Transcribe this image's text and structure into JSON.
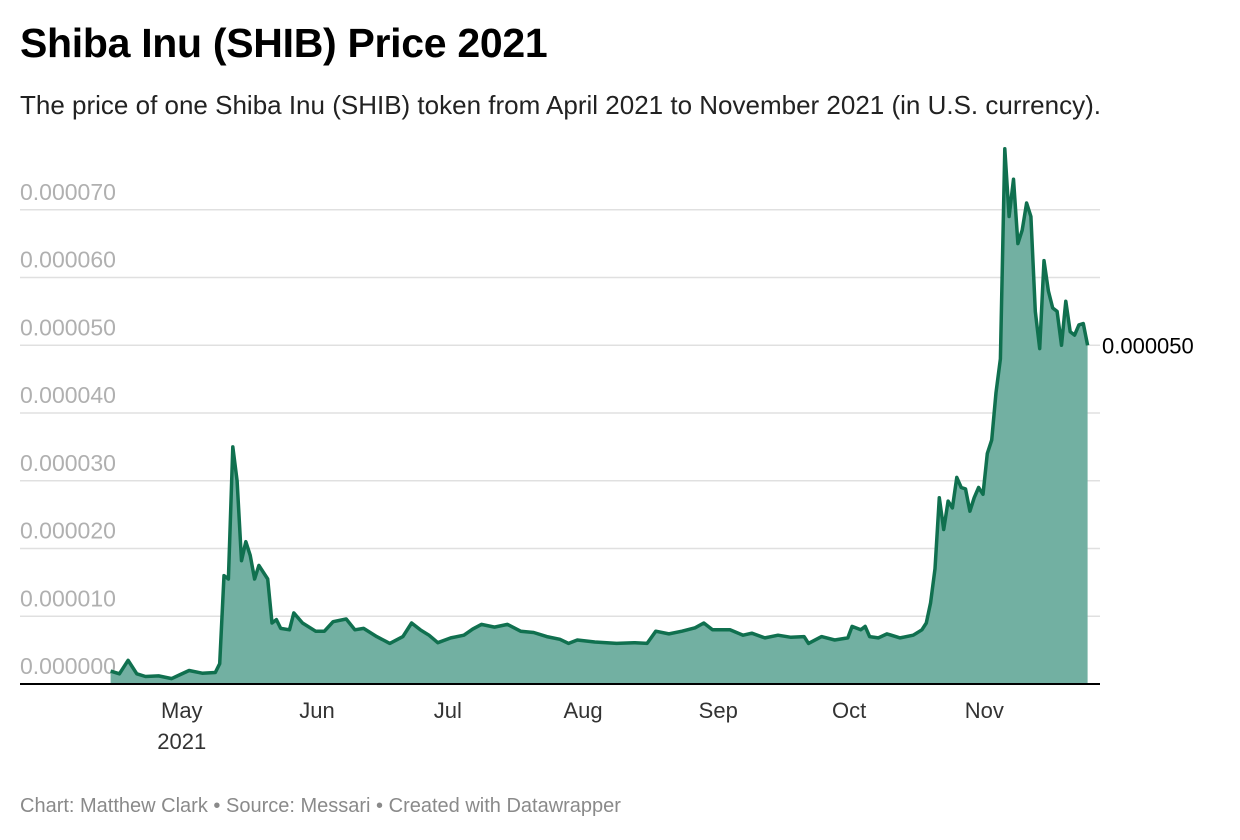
{
  "header": {
    "title": "Shiba Inu (SHIB) Price 2021",
    "subtitle": "The price of one Shiba Inu (SHIB) token from April 2021 to November 2021 (in U.S. currency)."
  },
  "footer": {
    "credit": "Chart: Matthew Clark",
    "separator": "•",
    "source": "Source: Messari",
    "created_with": "Created with Datawrapper"
  },
  "colors": {
    "line": "#10704f",
    "area": "#72b0a2",
    "grid": "#e0e0e0",
    "axis": "#000000"
  },
  "chart_data": {
    "type": "area",
    "title": "Shiba Inu (SHIB) Price 2021",
    "subtitle": "The price of one Shiba Inu (SHIB) token from April 2021 to November 2021 (in U.S. currency).",
    "xlabel": "",
    "ylabel": "",
    "xlim": [
      "2021-04-15",
      "2021-11-25"
    ],
    "ylim": [
      0,
      8e-05
    ],
    "grid": true,
    "y_ticks": [
      "0.000000",
      "0.000010",
      "0.000020",
      "0.000030",
      "0.000040",
      "0.000050",
      "0.000060",
      "0.000070"
    ],
    "x_ticks": [
      {
        "date": "2021-05-01",
        "label": "May",
        "sublabel": "2021"
      },
      {
        "date": "2021-06-01",
        "label": "Jun"
      },
      {
        "date": "2021-07-01",
        "label": "Jul"
      },
      {
        "date": "2021-08-01",
        "label": "Aug"
      },
      {
        "date": "2021-09-01",
        "label": "Sep"
      },
      {
        "date": "2021-10-01",
        "label": "Oct"
      },
      {
        "date": "2021-11-01",
        "label": "Nov"
      }
    ],
    "end_label": "0.000050",
    "series": [
      {
        "values": [
          [
            "2021-04-14",
            1.9e-06
          ],
          [
            "2021-04-16",
            1.5e-06
          ],
          [
            "2021-04-18",
            3.5e-06
          ],
          [
            "2021-04-20",
            1.5e-06
          ],
          [
            "2021-04-22",
            1.1e-06
          ],
          [
            "2021-04-25",
            1.2e-06
          ],
          [
            "2021-04-28",
            8e-07
          ],
          [
            "2021-04-30",
            1.4e-06
          ],
          [
            "2021-05-02",
            2e-06
          ],
          [
            "2021-05-05",
            1.6e-06
          ],
          [
            "2021-05-08",
            1.7e-06
          ],
          [
            "2021-05-09",
            3e-06
          ],
          [
            "2021-05-10",
            1.6e-05
          ],
          [
            "2021-05-11",
            1.55e-05
          ],
          [
            "2021-05-12",
            3.5e-05
          ],
          [
            "2021-05-13",
            3e-05
          ],
          [
            "2021-05-14",
            1.82e-05
          ],
          [
            "2021-05-15",
            2.1e-05
          ],
          [
            "2021-05-16",
            1.9e-05
          ],
          [
            "2021-05-17",
            1.55e-05
          ],
          [
            "2021-05-18",
            1.75e-05
          ],
          [
            "2021-05-20",
            1.55e-05
          ],
          [
            "2021-05-21",
            9e-06
          ],
          [
            "2021-05-22",
            9.5e-06
          ],
          [
            "2021-05-23",
            8.2e-06
          ],
          [
            "2021-05-25",
            8e-06
          ],
          [
            "2021-05-26",
            1.05e-05
          ],
          [
            "2021-05-28",
            9e-06
          ],
          [
            "2021-05-31",
            7.8e-06
          ],
          [
            "2021-06-02",
            7.8e-06
          ],
          [
            "2021-06-04",
            9.2e-06
          ],
          [
            "2021-06-07",
            9.6e-06
          ],
          [
            "2021-06-09",
            8e-06
          ],
          [
            "2021-06-11",
            8.2e-06
          ],
          [
            "2021-06-14",
            7e-06
          ],
          [
            "2021-06-17",
            6e-06
          ],
          [
            "2021-06-20",
            7e-06
          ],
          [
            "2021-06-22",
            9e-06
          ],
          [
            "2021-06-24",
            8e-06
          ],
          [
            "2021-06-26",
            7.2e-06
          ],
          [
            "2021-06-28",
            6.1e-06
          ],
          [
            "2021-07-01",
            6.8e-06
          ],
          [
            "2021-07-04",
            7.2e-06
          ],
          [
            "2021-07-06",
            8.1e-06
          ],
          [
            "2021-07-08",
            8.8e-06
          ],
          [
            "2021-07-11",
            8.4e-06
          ],
          [
            "2021-07-14",
            8.8e-06
          ],
          [
            "2021-07-17",
            7.8e-06
          ],
          [
            "2021-07-20",
            7.6e-06
          ],
          [
            "2021-07-23",
            7e-06
          ],
          [
            "2021-07-26",
            6.6e-06
          ],
          [
            "2021-07-28",
            6e-06
          ],
          [
            "2021-07-30",
            6.5e-06
          ],
          [
            "2021-08-03",
            6.2e-06
          ],
          [
            "2021-08-08",
            6e-06
          ],
          [
            "2021-08-12",
            6.1e-06
          ],
          [
            "2021-08-15",
            6e-06
          ],
          [
            "2021-08-17",
            7.8e-06
          ],
          [
            "2021-08-20",
            7.4e-06
          ],
          [
            "2021-08-23",
            7.8e-06
          ],
          [
            "2021-08-26",
            8.3e-06
          ],
          [
            "2021-08-28",
            9e-06
          ],
          [
            "2021-08-30",
            8e-06
          ],
          [
            "2021-09-03",
            8e-06
          ],
          [
            "2021-09-06",
            7.2e-06
          ],
          [
            "2021-09-08",
            7.5e-06
          ],
          [
            "2021-09-11",
            6.8e-06
          ],
          [
            "2021-09-14",
            7.2e-06
          ],
          [
            "2021-09-17",
            6.9e-06
          ],
          [
            "2021-09-20",
            7e-06
          ],
          [
            "2021-09-21",
            6e-06
          ],
          [
            "2021-09-24",
            7e-06
          ],
          [
            "2021-09-27",
            6.5e-06
          ],
          [
            "2021-09-30",
            6.8e-06
          ],
          [
            "2021-10-01",
            8.5e-06
          ],
          [
            "2021-10-03",
            8e-06
          ],
          [
            "2021-10-04",
            8.5e-06
          ],
          [
            "2021-10-05",
            7e-06
          ],
          [
            "2021-10-07",
            6.8e-06
          ],
          [
            "2021-10-09",
            7.4e-06
          ],
          [
            "2021-10-12",
            6.8e-06
          ],
          [
            "2021-10-15",
            7.2e-06
          ],
          [
            "2021-10-17",
            8e-06
          ],
          [
            "2021-10-18",
            9e-06
          ],
          [
            "2021-10-19",
            1.2e-05
          ],
          [
            "2021-10-20",
            1.7e-05
          ],
          [
            "2021-10-21",
            2.75e-05
          ],
          [
            "2021-10-22",
            2.28e-05
          ],
          [
            "2021-10-23",
            2.7e-05
          ],
          [
            "2021-10-24",
            2.6e-05
          ],
          [
            "2021-10-25",
            3.05e-05
          ],
          [
            "2021-10-26",
            2.9e-05
          ],
          [
            "2021-10-27",
            2.88e-05
          ],
          [
            "2021-10-28",
            2.55e-05
          ],
          [
            "2021-10-29",
            2.75e-05
          ],
          [
            "2021-10-30",
            2.9e-05
          ],
          [
            "2021-10-31",
            2.8e-05
          ],
          [
            "2021-11-01",
            3.4e-05
          ],
          [
            "2021-11-02",
            3.6e-05
          ],
          [
            "2021-11-03",
            4.3e-05
          ],
          [
            "2021-11-04",
            4.8e-05
          ],
          [
            "2021-11-05",
            7.9e-05
          ],
          [
            "2021-11-06",
            6.9e-05
          ],
          [
            "2021-11-07",
            7.45e-05
          ],
          [
            "2021-11-08",
            6.5e-05
          ],
          [
            "2021-11-09",
            6.7e-05
          ],
          [
            "2021-11-10",
            7.1e-05
          ],
          [
            "2021-11-11",
            6.9e-05
          ],
          [
            "2021-11-12",
            5.5e-05
          ],
          [
            "2021-11-13",
            4.95e-05
          ],
          [
            "2021-11-14",
            6.25e-05
          ],
          [
            "2021-11-15",
            5.8e-05
          ],
          [
            "2021-11-16",
            5.55e-05
          ],
          [
            "2021-11-17",
            5.5e-05
          ],
          [
            "2021-11-18",
            5e-05
          ],
          [
            "2021-11-19",
            5.65e-05
          ],
          [
            "2021-11-20",
            5.2e-05
          ],
          [
            "2021-11-21",
            5.15e-05
          ],
          [
            "2021-11-22",
            5.3e-05
          ],
          [
            "2021-11-23",
            5.32e-05
          ],
          [
            "2021-11-24",
            5e-05
          ]
        ]
      }
    ]
  }
}
